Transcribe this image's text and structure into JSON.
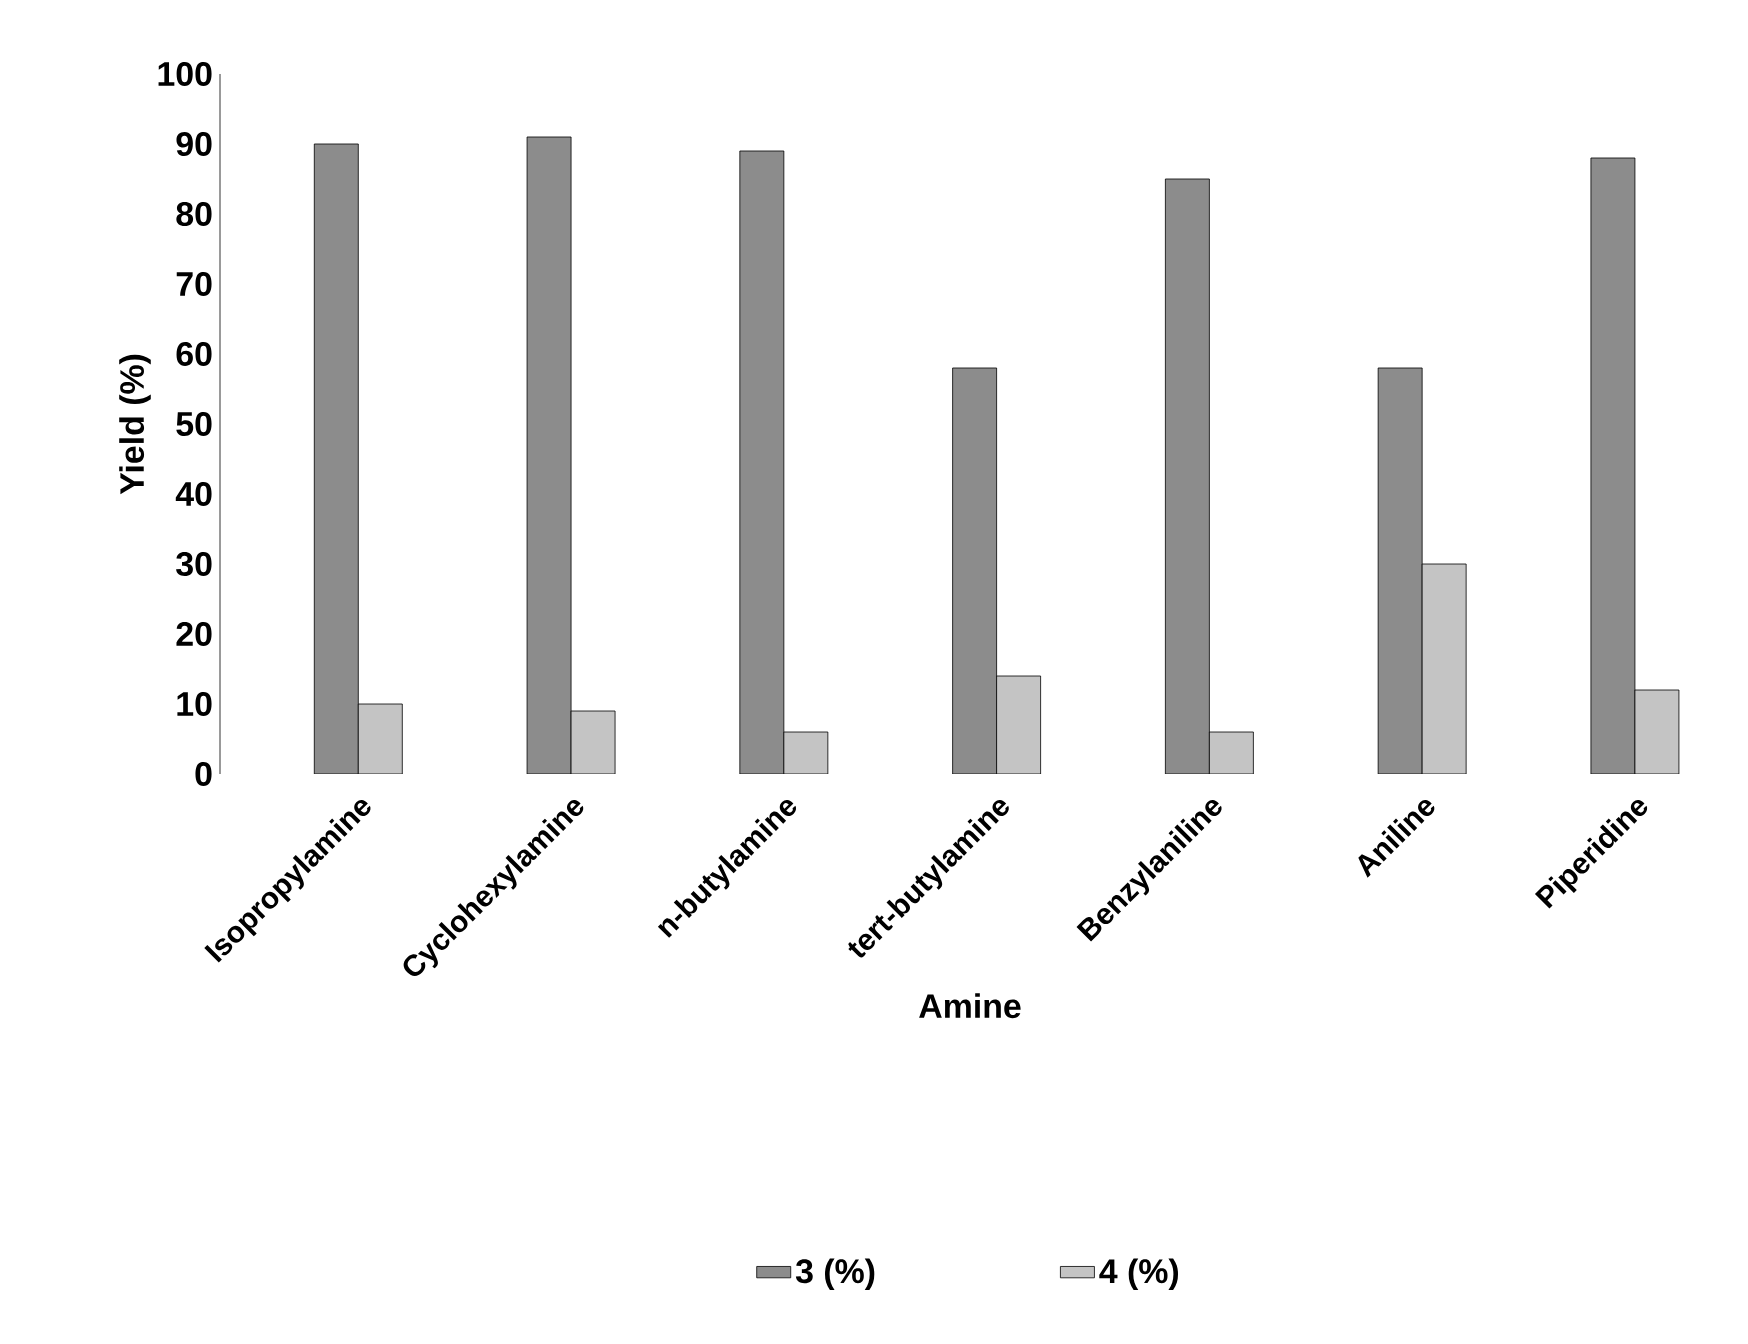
{
  "chart_data": {
    "type": "bar",
    "xlabel": "Amine",
    "ylabel": "Yield (%)",
    "categories": [
      "Isopropylamine",
      "Cyclohexylamine",
      "n-butylamine",
      "tert-butylamine",
      "Benzylaniline",
      "Aniline",
      "Piperidine"
    ],
    "series": [
      {
        "name": "3 (%)",
        "color": "#8c8c8c",
        "values": [
          90,
          91,
          89,
          58,
          85,
          58,
          88
        ]
      },
      {
        "name": "4 (%)",
        "color": "#c4c4c4",
        "values": [
          10,
          9,
          6,
          14,
          6,
          30,
          12
        ]
      }
    ],
    "ylim": [
      0,
      100
    ],
    "yticks": [
      0,
      10,
      20,
      30,
      40,
      50,
      60,
      70,
      80,
      90,
      100
    ],
    "grid": false,
    "legend": "bottom"
  }
}
